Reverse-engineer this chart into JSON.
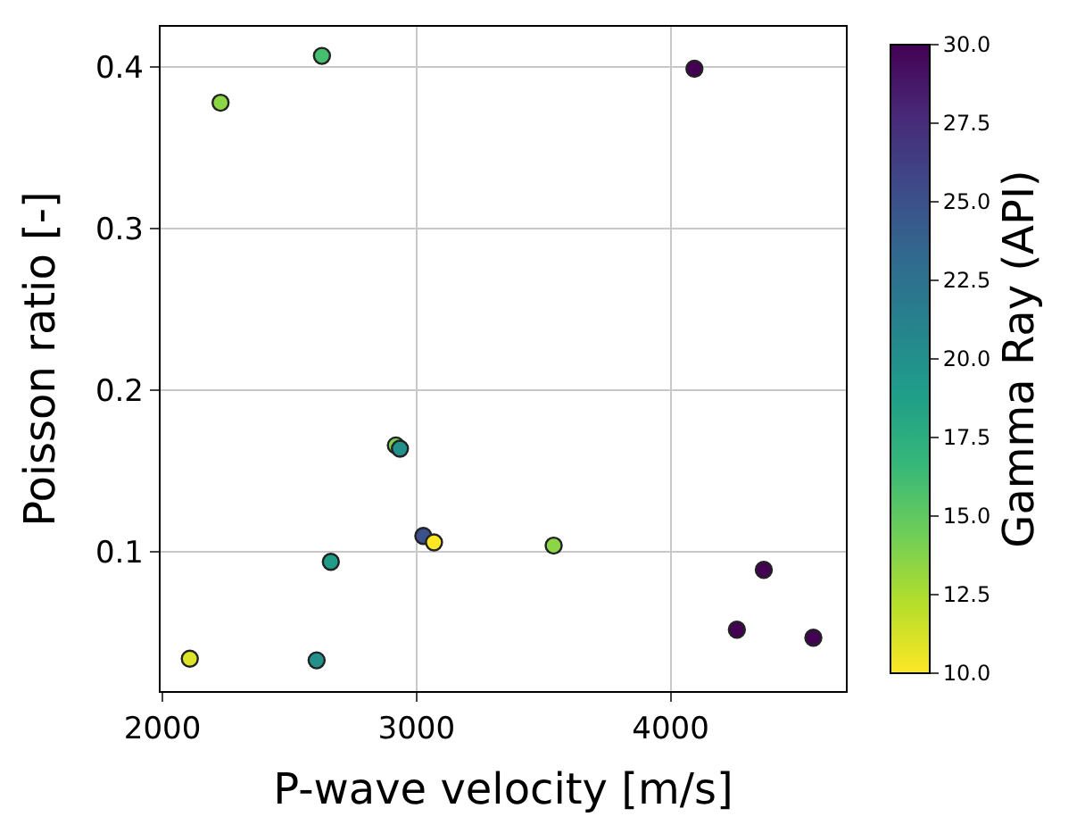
{
  "chart_data": {
    "type": "scatter",
    "xlabel": "P-wave velocity [m/s]",
    "ylabel": "Poisson ratio [-]",
    "clabel": "Gamma Ray (API)",
    "x": [
      2229,
      2628,
      4094,
      2108,
      2607,
      2663,
      2919,
      2935,
      3027,
      3069,
      3540,
      4367,
      4261,
      4562
    ],
    "values": [
      0.378,
      0.407,
      0.399,
      0.034,
      0.033,
      0.094,
      0.166,
      0.164,
      0.11,
      0.106,
      0.104,
      0.089,
      0.052,
      0.047
    ],
    "cvalues": [
      13.5,
      16,
      30,
      11,
      20,
      19,
      14,
      20,
      25,
      10,
      13.5,
      30,
      30,
      30
    ],
    "xlim": [
      1993,
      4690
    ],
    "xticks": [
      2000,
      3000,
      4000
    ],
    "ylim": [
      0.014,
      0.425
    ],
    "yticks": [
      0.1,
      0.2,
      0.3,
      0.4
    ],
    "clim": [
      10,
      30
    ],
    "cticks": [
      {
        "value": 10,
        "label": "10.0"
      },
      12.5,
      {
        "value": 15,
        "label": "15.0"
      },
      17.5,
      {
        "value": 20,
        "label": "20.0"
      },
      22.5,
      {
        "value": 25,
        "label": "25.0"
      },
      27.5,
      {
        "value": 30,
        "label": "30.0"
      }
    ],
    "grid": true,
    "marker": "circle",
    "legend": false
  }
}
